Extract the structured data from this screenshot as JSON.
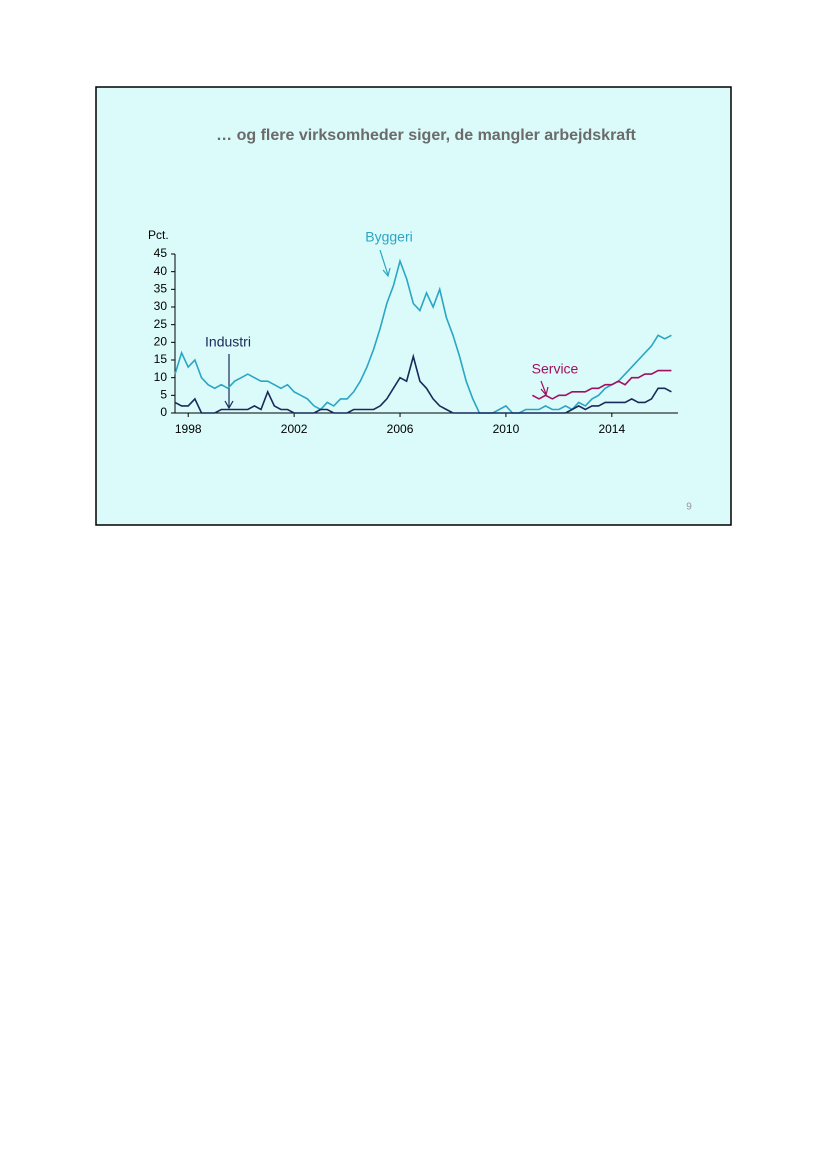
{
  "chart_data": {
    "type": "line",
    "title": "… og flere virksomheder siger, de mangler arbejdskraft",
    "ylabel": "Pct.",
    "xlim": [
      1997.5,
      2016.5
    ],
    "xticks": [
      1998,
      2002,
      2006,
      2010,
      2014
    ],
    "ylim": [
      0,
      45
    ],
    "yticks": [
      0,
      5,
      10,
      15,
      20,
      25,
      30,
      35,
      40,
      45
    ],
    "series": [
      {
        "name": "Byggeri",
        "color": "#2aa6c4",
        "x": [
          1997.5,
          1997.75,
          1998,
          1998.25,
          1998.5,
          1998.75,
          1999,
          1999.25,
          1999.5,
          1999.75,
          2000,
          2000.25,
          2000.5,
          2000.75,
          2001,
          2001.25,
          2001.5,
          2001.75,
          2002,
          2002.25,
          2002.5,
          2002.75,
          2003,
          2003.25,
          2003.5,
          2003.75,
          2004,
          2004.25,
          2004.5,
          2004.75,
          2005,
          2005.25,
          2005.5,
          2005.75,
          2006,
          2006.25,
          2006.5,
          2006.75,
          2007,
          2007.25,
          2007.5,
          2007.75,
          2008,
          2008.25,
          2008.5,
          2008.75,
          2009,
          2009.25,
          2009.5,
          2009.75,
          2010,
          2010.25,
          2010.5,
          2010.75,
          2011,
          2011.25,
          2011.5,
          2011.75,
          2012,
          2012.25,
          2012.5,
          2012.75,
          2013,
          2013.25,
          2013.5,
          2013.75,
          2014,
          2014.25,
          2014.5,
          2014.75,
          2015,
          2015.25,
          2015.5,
          2015.75,
          2016,
          2016.25
        ],
        "values": [
          11,
          17,
          13,
          15,
          10,
          8,
          7,
          8,
          7,
          9,
          10,
          11,
          10,
          9,
          9,
          8,
          7,
          8,
          6,
          5,
          4,
          2,
          1,
          3,
          2,
          4,
          4,
          6,
          9,
          13,
          18,
          24,
          31,
          36,
          43,
          38,
          31,
          29,
          34,
          30,
          35,
          27,
          22,
          16,
          9,
          4,
          0,
          0,
          0,
          1,
          2,
          0,
          0,
          1,
          1,
          1,
          2,
          1,
          1,
          2,
          1,
          3,
          2,
          4,
          5,
          7,
          8,
          9,
          11,
          13,
          15,
          17,
          19,
          22,
          21,
          22
        ]
      },
      {
        "name": "Industri",
        "color": "#1a2a5a",
        "x": [
          1997.5,
          1997.75,
          1998,
          1998.25,
          1998.5,
          1998.75,
          1999,
          1999.25,
          1999.5,
          1999.75,
          2000,
          2000.25,
          2000.5,
          2000.75,
          2001,
          2001.25,
          2001.5,
          2001.75,
          2002,
          2002.25,
          2002.5,
          2002.75,
          2003,
          2003.25,
          2003.5,
          2003.75,
          2004,
          2004.25,
          2004.5,
          2004.75,
          2005,
          2005.25,
          2005.5,
          2005.75,
          2006,
          2006.25,
          2006.5,
          2006.75,
          2007,
          2007.25,
          2007.5,
          2007.75,
          2008,
          2008.25,
          2008.5,
          2008.75,
          2009,
          2009.25,
          2009.5,
          2009.75,
          2010,
          2010.25,
          2010.5,
          2010.75,
          2011,
          2011.25,
          2011.5,
          2011.75,
          2012,
          2012.25,
          2012.5,
          2012.75,
          2013,
          2013.25,
          2013.5,
          2013.75,
          2014,
          2014.25,
          2014.5,
          2014.75,
          2015,
          2015.25,
          2015.5,
          2015.75,
          2016,
          2016.25
        ],
        "values": [
          3,
          2,
          2,
          4,
          0,
          0,
          0,
          1,
          1,
          1,
          1,
          1,
          2,
          1,
          6,
          2,
          1,
          1,
          0,
          0,
          0,
          0,
          1,
          1,
          0,
          0,
          0,
          1,
          1,
          1,
          1,
          2,
          4,
          7,
          10,
          9,
          16,
          9,
          7,
          4,
          2,
          1,
          0,
          0,
          0,
          0,
          0,
          0,
          0,
          0,
          0,
          0,
          0,
          0,
          0,
          0,
          0,
          0,
          0,
          0,
          1,
          2,
          1,
          2,
          2,
          3,
          3,
          3,
          3,
          4,
          3,
          3,
          4,
          7,
          7,
          6
        ]
      },
      {
        "name": "Service",
        "color": "#a0105e",
        "x": [
          2011,
          2011.25,
          2011.5,
          2011.75,
          2012,
          2012.25,
          2012.5,
          2012.75,
          2013,
          2013.25,
          2013.5,
          2013.75,
          2014,
          2014.25,
          2014.5,
          2014.75,
          2015,
          2015.25,
          2015.5,
          2015.75,
          2016,
          2016.25
        ],
        "values": [
          5,
          4,
          5,
          4,
          5,
          5,
          6,
          6,
          6,
          7,
          7,
          8,
          8,
          9,
          8,
          10,
          10,
          11,
          11,
          12,
          12,
          12
        ]
      }
    ]
  },
  "slide": {
    "page_number": "9"
  }
}
